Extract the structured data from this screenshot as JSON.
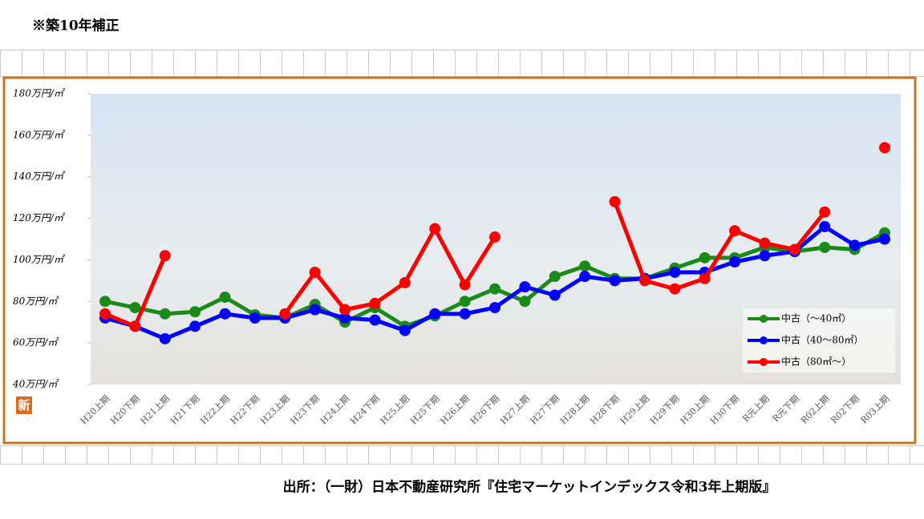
{
  "header": "※築10年補正",
  "footer": "出所：（一財）日本不動産研究所『住宅マーケットインデックス令和3年上期版』",
  "badge": "新",
  "chart_data": {
    "type": "line",
    "categories": [
      "H20上期",
      "H20下期",
      "H21上期",
      "H21下期",
      "H22上期",
      "H22下期",
      "H23上期",
      "H23下期",
      "H24上期",
      "H24下期",
      "H25上期",
      "H25下期",
      "H26上期",
      "H26下期",
      "H27上期",
      "H27下期",
      "H28上期",
      "H28下期",
      "H29上期",
      "H29下期",
      "H30上期",
      "H30下期",
      "R元上期",
      "R元下期",
      "R02上期",
      "R02下期",
      "R03上期"
    ],
    "series": [
      {
        "name": "中古（～40㎡）",
        "color": "#1a8a1a",
        "values": [
          80,
          77,
          74,
          75,
          82,
          73.5,
          72,
          78.5,
          70,
          77,
          68,
          73,
          80,
          86,
          80,
          92,
          97,
          91,
          91,
          96,
          101,
          101,
          106,
          104,
          106,
          105,
          113
        ]
      },
      {
        "name": "中古（40～80㎡）",
        "color": "#0000ff",
        "values": [
          72,
          68,
          62,
          68,
          74,
          72,
          72,
          76,
          72,
          71,
          66,
          74,
          74,
          77,
          87,
          83,
          92,
          90,
          91,
          94,
          94,
          99,
          102,
          104,
          116,
          107,
          110
        ]
      },
      {
        "name": "中古（80㎡～）",
        "color": "#ff0000",
        "values": [
          74,
          68,
          102,
          null,
          null,
          null,
          74,
          94,
          76,
          79,
          89,
          115,
          88,
          111,
          null,
          null,
          null,
          128,
          90,
          86,
          91,
          114,
          108,
          105,
          123,
          null,
          154
        ]
      }
    ],
    "ylim": [
      40,
      180
    ],
    "yticks": [
      {
        "value": 40,
        "label": "40万円/㎡"
      },
      {
        "value": 60,
        "label": "60万円/㎡"
      },
      {
        "value": 80,
        "label": "80万円/㎡"
      },
      {
        "value": 100,
        "label": "100万円/㎡"
      },
      {
        "value": 120,
        "label": "120万円/㎡"
      },
      {
        "value": 140,
        "label": "140万円/㎡"
      },
      {
        "value": 160,
        "label": "160万円/㎡"
      },
      {
        "value": 180,
        "label": "180万円/㎡"
      }
    ],
    "legend": "lower right"
  }
}
